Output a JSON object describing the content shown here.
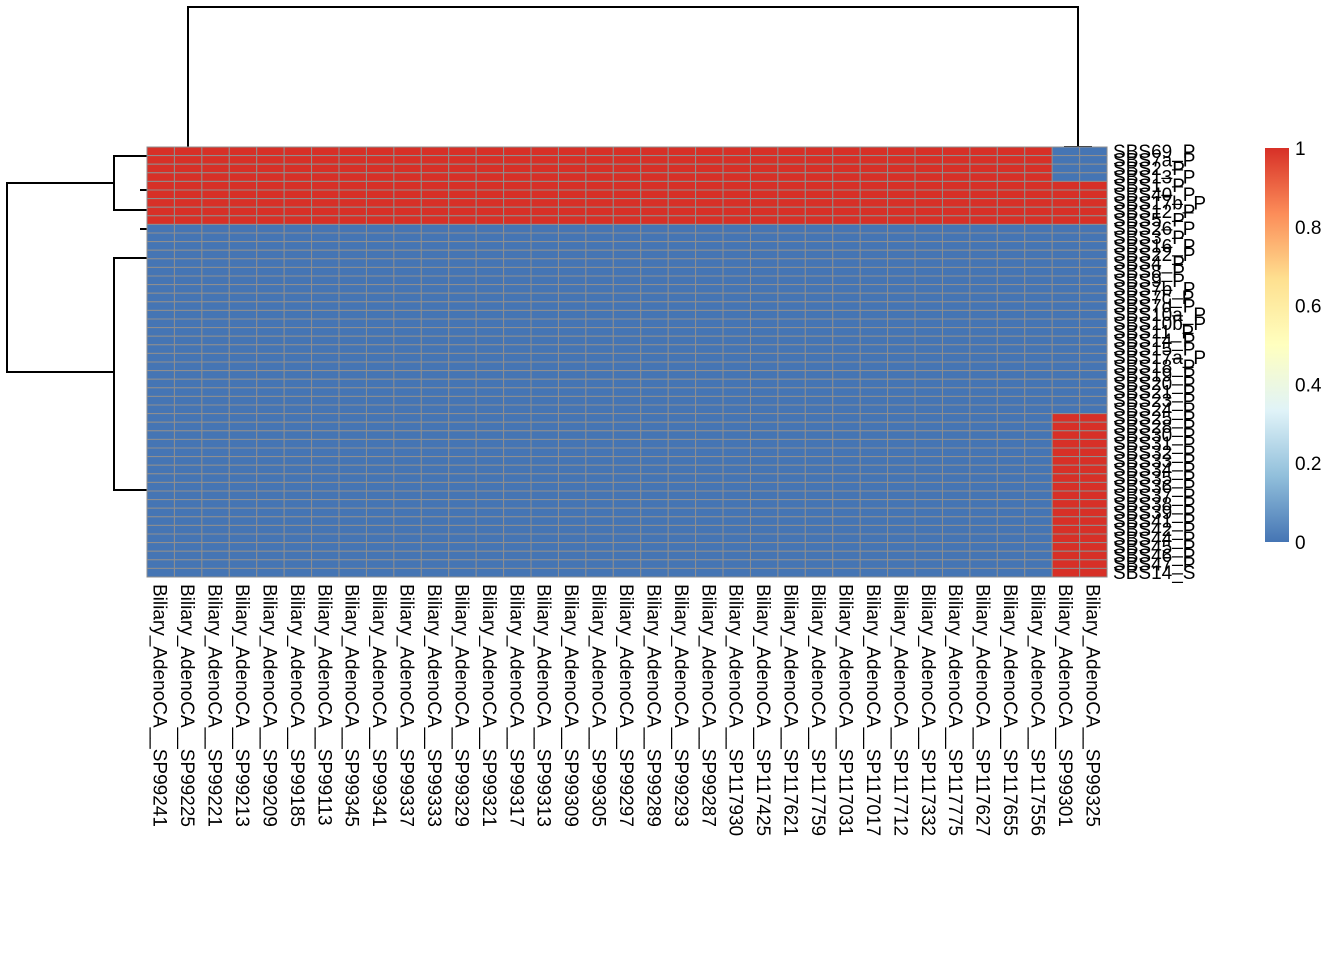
{
  "chart_data": {
    "type": "heatmap",
    "title": "",
    "columns": [
      "Biliary_AdenoCA__SP99241",
      "Biliary_AdenoCA__SP99225",
      "Biliary_AdenoCA__SP99221",
      "Biliary_AdenoCA__SP99213",
      "Biliary_AdenoCA__SP99209",
      "Biliary_AdenoCA__SP99185",
      "Biliary_AdenoCA__SP99113",
      "Biliary_AdenoCA__SP99345",
      "Biliary_AdenoCA__SP99341",
      "Biliary_AdenoCA__SP99337",
      "Biliary_AdenoCA__SP99333",
      "Biliary_AdenoCA__SP99329",
      "Biliary_AdenoCA__SP99321",
      "Biliary_AdenoCA__SP99317",
      "Biliary_AdenoCA__SP99313",
      "Biliary_AdenoCA__SP99309",
      "Biliary_AdenoCA__SP99305",
      "Biliary_AdenoCA__SP99297",
      "Biliary_AdenoCA__SP99289",
      "Biliary_AdenoCA__SP99293",
      "Biliary_AdenoCA__SP99287",
      "Biliary_AdenoCA__SP117930",
      "Biliary_AdenoCA__SP117425",
      "Biliary_AdenoCA__SP117621",
      "Biliary_AdenoCA__SP117759",
      "Biliary_AdenoCA__SP117031",
      "Biliary_AdenoCA__SP117017",
      "Biliary_AdenoCA__SP117712",
      "Biliary_AdenoCA__SP117332",
      "Biliary_AdenoCA__SP117775",
      "Biliary_AdenoCA__SP117627",
      "Biliary_AdenoCA__SP117655",
      "Biliary_AdenoCA__SP117556",
      "Biliary_AdenoCA__SP99301",
      "Biliary_AdenoCA__SP99325"
    ],
    "rows": [
      "SBS69_P",
      "SBS7a_P",
      "SBS2_P",
      "SBS13_P",
      "SBS1_P",
      "SBS40_P",
      "SBS17b_P",
      "SBS12_P",
      "SBS5_P",
      "SBS26_P",
      "SBS3_P",
      "SBS16_P",
      "SBS22_P",
      "SBS4_P",
      "SBS8_P",
      "SBS9_P",
      "SBS7b_P",
      "SBS7c_P",
      "SBS7d_P",
      "SBS10a_P",
      "SBS10b_P",
      "SBS11_P",
      "SBS14_P",
      "SBS15_P",
      "SBS17a_P",
      "SBS18_P",
      "SBS19_P",
      "SBS20_P",
      "SBS21_P",
      "SBS23_P",
      "SBS24_P",
      "SBS25_P",
      "SBS28_P",
      "SBS30_P",
      "SBS31_P",
      "SBS32_P",
      "SBS33_P",
      "SBS34_P",
      "SBS35_P",
      "SBS36_P",
      "SBS37_P",
      "SBS38_P",
      "SBS39_P",
      "SBS41_P",
      "SBS42_P",
      "SBS44_P",
      "SBS45_P",
      "SBS46_P",
      "SBS47_P",
      "SBS14_S"
    ],
    "value_groups": {
      "rows_0_3": "1 for columns 0-32; 0 for columns 33-34",
      "rows_4_8": "1 for all columns",
      "rows_9_30": "0 for all columns",
      "rows_31_49": "0 for columns 0-32; 1 for columns 33-34"
    },
    "color_scale": {
      "min": 0,
      "max": 1,
      "ticks": [
        "0",
        "0.2",
        "0.4",
        "0.6",
        "0.8",
        "1"
      ],
      "colors": [
        "#4575b4",
        "#91bfdb",
        "#e0f3f8",
        "#ffffbf",
        "#fee090",
        "#fc8d59",
        "#d73027"
      ],
      "cell_border": "#8f8f8f"
    },
    "row_dendrogram": true,
    "col_dendrogram": true,
    "legend": "right"
  }
}
